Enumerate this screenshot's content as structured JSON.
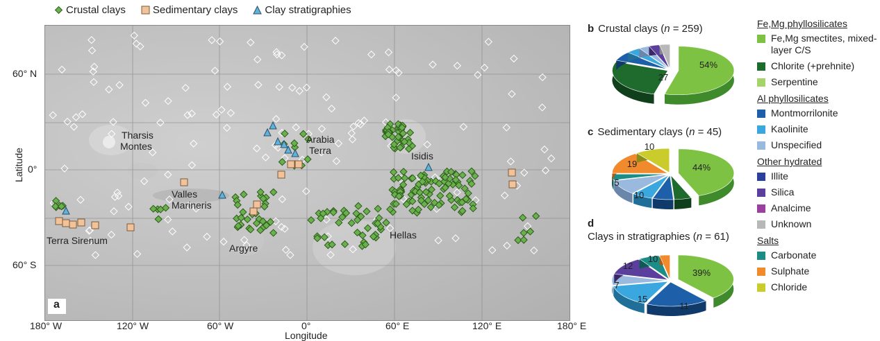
{
  "legend": {
    "crustal": "Crustal clays",
    "sedimentary": "Sedimentary clays",
    "stratigraphies": "Clay stratigraphies",
    "colors": {
      "crustal": "#6ab04c",
      "sedimentary": "#f2c39a",
      "stratigraphies": "#5fb3d9",
      "detection_outline": "#ffffff"
    }
  },
  "map": {
    "panel_label": "a",
    "y_axis_title": "Latitude",
    "x_axis_title": "Longitude",
    "y_ticks": [
      "60° N",
      "0°",
      "60° S"
    ],
    "x_ticks": [
      "180° W",
      "120° W",
      "60° W",
      "0°",
      "60° E",
      "120° E",
      "180° E"
    ],
    "places": {
      "tharsis": [
        "Tharsis",
        "Montes"
      ],
      "arabia": [
        "Arabia",
        "Terra"
      ],
      "isidis": "Isidis",
      "valles": [
        "Valles",
        "Marineris"
      ],
      "terra_sirenum": "Terra Sirenum",
      "argyre": "Argyre",
      "hellas": "Hellas"
    }
  },
  "panels": {
    "b": {
      "letter": "b",
      "title_pre": "Crustal clays (",
      "n_sym": "n",
      "title_post": " = 259)",
      "labels": [
        "54%",
        "27"
      ]
    },
    "c": {
      "letter": "c",
      "title_pre": "Sedimentary clays (",
      "n_sym": "n",
      "title_post": " = 45)",
      "labels": [
        "44%",
        "19",
        "10",
        "10",
        "5"
      ]
    },
    "d": {
      "letter": "d",
      "title_pre": "Clays in stratigraphies (",
      "n_sym": "n",
      "title_post": " = 61)",
      "labels": [
        "39%",
        "15",
        "11",
        "12",
        "10",
        "7"
      ]
    }
  },
  "mineral_legend": {
    "groups": [
      {
        "heading": "Fe,Mg phyllosilicates",
        "items": [
          {
            "label": "Fe,Mg smectites, mixed-layer C/S",
            "color": "#7dc242"
          },
          {
            "label": "Chlorite (+prehnite)",
            "color": "#1f6b2e"
          },
          {
            "label": "Serpentine",
            "color": "#a6d46a"
          }
        ]
      },
      {
        "heading": "Al phyllosilicates",
        "items": [
          {
            "label": "Montmorrilonite",
            "color": "#1d5fa8"
          },
          {
            "label": "Kaolinite",
            "color": "#3aa8df"
          },
          {
            "label": "Unspecified",
            "color": "#9ab9df"
          }
        ]
      },
      {
        "heading": "Other hydrated",
        "items": [
          {
            "label": "Illite",
            "color": "#2b3f9e"
          },
          {
            "label": "Silica",
            "color": "#5b3f9c"
          },
          {
            "label": "Analcime",
            "color": "#9b3fa0"
          },
          {
            "label": "Unknown",
            "color": "#b8b8b8"
          }
        ]
      },
      {
        "heading": "Salts",
        "items": [
          {
            "label": "Carbonate",
            "color": "#1c8c86"
          },
          {
            "label": "Sulphate",
            "color": "#f08a2c"
          },
          {
            "label": "Chloride",
            "color": "#c9cc2a"
          }
        ]
      }
    ]
  }
}
